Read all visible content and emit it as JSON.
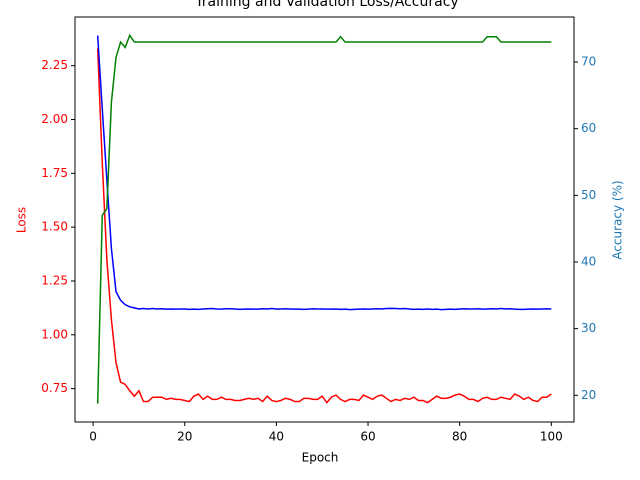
{
  "chart_data": {
    "type": "line",
    "title": "Training and Validation Loss/Accuracy",
    "xlabel": "Epoch",
    "ylabel": "Loss",
    "y2label": "Accuracy (%)",
    "ylabel_color": "red",
    "y2label_color": "#1f77b4",
    "x": [
      1,
      2,
      3,
      4,
      5,
      6,
      7,
      8,
      9,
      10,
      11,
      12,
      13,
      14,
      15,
      16,
      17,
      18,
      19,
      20,
      21,
      22,
      23,
      24,
      25,
      26,
      27,
      28,
      29,
      30,
      31,
      32,
      33,
      34,
      35,
      36,
      37,
      38,
      39,
      40,
      41,
      42,
      43,
      44,
      45,
      46,
      47,
      48,
      49,
      50,
      51,
      52,
      53,
      54,
      55,
      56,
      57,
      58,
      59,
      60,
      61,
      62,
      63,
      64,
      65,
      66,
      67,
      68,
      69,
      70,
      71,
      72,
      73,
      74,
      75,
      76,
      77,
      78,
      79,
      80,
      81,
      82,
      83,
      84,
      85,
      86,
      87,
      88,
      89,
      90,
      91,
      92,
      93,
      94,
      95,
      96,
      97,
      98,
      99,
      100
    ],
    "xlim": [
      -3.95,
      104.95
    ],
    "xticks": [
      0,
      20,
      40,
      60,
      80,
      100
    ],
    "ylim": [
      0.595,
      2.476
    ],
    "yticks": [
      0.75,
      {
        "value": 1,
        "label": "1.00"
      },
      1.25,
      {
        "value": 1.5,
        "label": "1.50"
      },
      1.75,
      {
        "value": 2,
        "label": "2.00"
      },
      2.25
    ],
    "y2lim": [
      15.99,
      76.76
    ],
    "y2ticks": [
      20,
      30,
      40,
      50,
      60,
      70
    ],
    "series": [
      {
        "color": "red",
        "values": [
          2.33,
          1.8,
          1.35,
          1.07,
          0.87,
          0.78,
          0.77,
          0.74,
          0.715,
          0.74,
          0.69,
          0.69,
          0.71,
          0.71,
          0.71,
          0.7,
          0.705,
          0.7,
          0.7,
          0.695,
          0.69,
          0.715,
          0.725,
          0.7,
          0.715,
          0.7,
          0.7,
          0.71,
          0.7,
          0.7,
          0.695,
          0.695,
          0.7,
          0.705,
          0.7,
          0.705,
          0.69,
          0.715,
          0.695,
          0.69,
          0.695,
          0.705,
          0.7,
          0.69,
          0.69,
          0.705,
          0.705,
          0.7,
          0.7,
          0.715,
          0.685,
          0.71,
          0.72,
          0.7,
          0.69,
          0.7,
          0.7,
          0.695,
          0.72,
          0.71,
          0.7,
          0.715,
          0.72,
          0.705,
          0.69,
          0.7,
          0.695,
          0.705,
          0.7,
          0.71,
          0.695,
          0.695,
          0.685,
          0.7,
          0.715,
          0.705,
          0.705,
          0.71,
          0.72,
          0.725,
          0.715,
          0.7,
          0.7,
          0.69,
          0.705,
          0.71,
          0.7,
          0.7,
          0.71,
          0.705,
          0.7,
          0.725,
          0.715,
          0.7,
          0.71,
          0.695,
          0.69,
          0.71,
          0.71,
          0.725
        ]
      },
      {
        "color": "blue",
        "values": [
          2.39,
          2.05,
          1.72,
          1.4,
          1.2,
          1.16,
          1.14,
          1.13,
          1.125,
          1.12,
          1.122,
          1.12,
          1.122,
          1.12,
          1.121,
          1.119,
          1.12,
          1.119,
          1.12,
          1.12,
          1.118,
          1.119,
          1.118,
          1.12,
          1.121,
          1.122,
          1.12,
          1.119,
          1.121,
          1.121,
          1.12,
          1.118,
          1.119,
          1.12,
          1.119,
          1.119,
          1.121,
          1.12,
          1.122,
          1.12,
          1.12,
          1.121,
          1.12,
          1.119,
          1.119,
          1.118,
          1.119,
          1.121,
          1.12,
          1.12,
          1.119,
          1.119,
          1.12,
          1.118,
          1.119,
          1.117,
          1.118,
          1.119,
          1.12,
          1.119,
          1.12,
          1.121,
          1.12,
          1.122,
          1.123,
          1.122,
          1.121,
          1.122,
          1.12,
          1.118,
          1.119,
          1.118,
          1.12,
          1.118,
          1.119,
          1.117,
          1.118,
          1.119,
          1.118,
          1.12,
          1.121,
          1.12,
          1.12,
          1.121,
          1.119,
          1.12,
          1.121,
          1.12,
          1.122,
          1.12,
          1.121,
          1.119,
          1.118,
          1.118,
          1.119,
          1.12,
          1.119,
          1.12,
          1.121,
          1.12
        ]
      },
      {
        "color": "green",
        "axis": "y2",
        "values": [
          18.75,
          47,
          48,
          64,
          70.7,
          73,
          72.2,
          74,
          73,
          73,
          73,
          73,
          73,
          73,
          73,
          73,
          73,
          73,
          73,
          73,
          73,
          73,
          73,
          73,
          73,
          73,
          73,
          73,
          73,
          73,
          73,
          73,
          73,
          73,
          73,
          73,
          73,
          73,
          73,
          73,
          73,
          73,
          73,
          73,
          73,
          73,
          73,
          73,
          73,
          73,
          73,
          73,
          73,
          73.8,
          73,
          73,
          73,
          73,
          73,
          73,
          73,
          73,
          73,
          73,
          73,
          73,
          73,
          73,
          73,
          73,
          73,
          73,
          73,
          73,
          73,
          73,
          73,
          73,
          73,
          73,
          73,
          73,
          73,
          73,
          73,
          73.8,
          73.8,
          73.8,
          73,
          73,
          73,
          73,
          73,
          73,
          73,
          73,
          73,
          73,
          73,
          73
        ]
      }
    ]
  }
}
